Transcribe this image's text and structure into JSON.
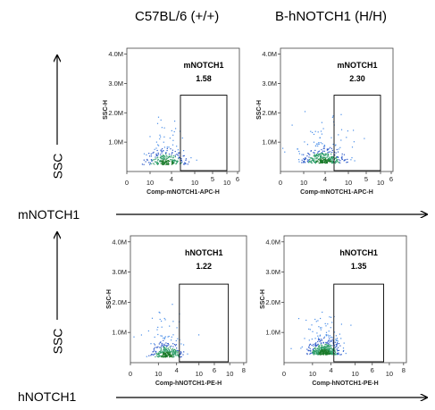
{
  "columns": [
    "C57BL/6 (+/+)",
    "B-hNOTCH1 (H/H)"
  ],
  "row_labels": {
    "ssc": "SSC",
    "row1_x": "mNOTCH1",
    "row2_x": "hNOTCH1"
  },
  "colors": {
    "dense": "#1a7a2a",
    "mid": "#2b58c8",
    "sparse": "#4a8ee8",
    "gate": "#000000"
  },
  "chart_data": [
    {
      "type": "scatter",
      "subtype": "flow-cytometry-density",
      "strain": "C57BL/6 (+/+)",
      "gate_name": "mNOTCH1",
      "gate_percent": "1.58",
      "xlabel": "Comp-mNOTCH1-APC-H",
      "ylabel": "SSC-H",
      "x_ticks": [
        "0",
        "10",
        "4",
        "10",
        "5",
        "10",
        "6"
      ],
      "y_ticks": [
        "1.0M",
        "2.0M",
        "3.0M",
        "4.0M"
      ],
      "y_range": [
        0,
        4200000
      ],
      "gate": {
        "x_range_log": [
          3.0,
          5.6
        ],
        "y_range": [
          0,
          2600000
        ]
      },
      "population": {
        "center_x_log": 2.2,
        "center_y": 250000,
        "spread": "low"
      }
    },
    {
      "type": "scatter",
      "subtype": "flow-cytometry-density",
      "strain": "B-hNOTCH1 (H/H)",
      "gate_name": "mNOTCH1",
      "gate_percent": "2.30",
      "xlabel": "Comp-mNOTCH1-APC-H",
      "ylabel": "SSC-H",
      "x_ticks": [
        "0",
        "10",
        "4",
        "10",
        "5",
        "10",
        "6"
      ],
      "y_ticks": [
        "1.0M",
        "2.0M",
        "3.0M",
        "4.0M"
      ],
      "y_range": [
        0,
        4200000
      ],
      "gate": {
        "x_range_log": [
          3.0,
          5.6
        ],
        "y_range": [
          0,
          2600000
        ]
      },
      "population": {
        "center_x_log": 2.4,
        "center_y": 300000,
        "spread": "medium"
      }
    },
    {
      "type": "scatter",
      "subtype": "flow-cytometry-density",
      "strain": "C57BL/6 (+/+)",
      "gate_name": "hNOTCH1",
      "gate_percent": "1.22",
      "xlabel": "Comp-hNOTCH1-PE-H",
      "ylabel": "SSC-H",
      "x_ticks": [
        "0",
        "10",
        "4",
        "10",
        "6",
        "10",
        "8"
      ],
      "y_ticks": [
        "1.0M",
        "2.0M",
        "3.0M",
        "4.0M"
      ],
      "y_range": [
        0,
        4200000
      ],
      "gate": {
        "x_range_log": [
          3.5,
          7.0
        ],
        "y_range": [
          0,
          2600000
        ]
      },
      "population": {
        "center_x_log": 2.6,
        "center_y": 200000,
        "spread": "medium"
      }
    },
    {
      "type": "scatter",
      "subtype": "flow-cytometry-density",
      "strain": "B-hNOTCH1 (H/H)",
      "gate_name": "hNOTCH1",
      "gate_percent": "1.35",
      "xlabel": "Comp-hNOTCH1-PE-H",
      "ylabel": "SSC-H",
      "x_ticks": [
        "0",
        "10",
        "4",
        "10",
        "6",
        "10",
        "8"
      ],
      "y_ticks": [
        "1.0M",
        "2.0M",
        "3.0M",
        "4.0M"
      ],
      "y_range": [
        0,
        4200000
      ],
      "gate": {
        "x_range_log": [
          3.5,
          7.0
        ],
        "y_range": [
          0,
          2600000
        ]
      },
      "population": {
        "center_x_log": 2.8,
        "center_y": 280000,
        "spread": "high"
      }
    }
  ]
}
